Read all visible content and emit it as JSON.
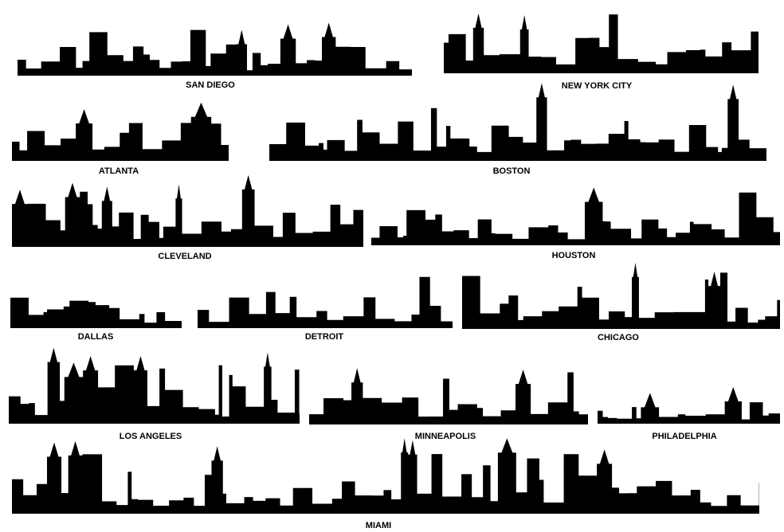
{
  "skylines": [
    {
      "label": "SAN DIEGO"
    },
    {
      "label": "NEW YORK CITY"
    },
    {
      "label": "ATLANTA"
    },
    {
      "label": "BOSTON"
    },
    {
      "label": "CLEVELAND"
    },
    {
      "label": "HOUSTON"
    },
    {
      "label": "DALLAS"
    },
    {
      "label": "DETROIT"
    },
    {
      "label": "CHICAGO"
    },
    {
      "label": "LOS ANGELES"
    },
    {
      "label": "MINNEAPOLIS"
    },
    {
      "label": "PHILADELPHIA"
    },
    {
      "label": "MIAMI"
    }
  ]
}
